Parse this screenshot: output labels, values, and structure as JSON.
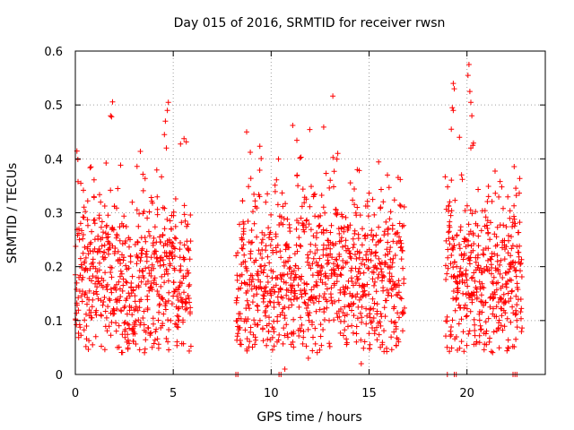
{
  "chart_data": {
    "type": "scatter",
    "title": "Day 015 of 2016, SRMTID for receiver rwsn",
    "xlabel": "GPS time / hours",
    "ylabel": "SRMTID / TECUs",
    "xlim": [
      0,
      24
    ],
    "ylim": [
      0,
      0.6
    ],
    "xticks": [
      0,
      5,
      10,
      15,
      20
    ],
    "xtick_labels": [
      "0",
      "5",
      "10",
      "15",
      "20"
    ],
    "yticks": [
      0,
      0.1,
      0.2,
      0.3,
      0.4,
      0.5,
      0.6
    ],
    "ytick_labels": [
      "0",
      "0.1",
      "0.2",
      "0.3",
      "0.4",
      "0.5",
      "0.6"
    ],
    "grid": true,
    "marker": "+",
    "color": "#ff0000",
    "segments": [
      {
        "start": 0.0,
        "end": 5.9,
        "n": 620,
        "seed": 11
      },
      {
        "start": 8.2,
        "end": 16.8,
        "n": 900,
        "seed": 23
      },
      {
        "start": 18.9,
        "end": 22.8,
        "n": 430,
        "seed": 37
      }
    ],
    "highlights": [
      {
        "x": 1.8,
        "y": 0.48
      },
      {
        "x": 1.85,
        "y": 0.478
      },
      {
        "x": 4.75,
        "y": 0.505
      },
      {
        "x": 4.7,
        "y": 0.49
      },
      {
        "x": 4.6,
        "y": 0.47
      },
      {
        "x": 4.55,
        "y": 0.445
      },
      {
        "x": 4.65,
        "y": 0.42
      },
      {
        "x": 8.75,
        "y": 0.45
      },
      {
        "x": 11.1,
        "y": 0.462
      },
      {
        "x": 13.4,
        "y": 0.41
      },
      {
        "x": 14.4,
        "y": 0.38
      },
      {
        "x": 19.3,
        "y": 0.54
      },
      {
        "x": 19.35,
        "y": 0.53
      },
      {
        "x": 19.3,
        "y": 0.49
      },
      {
        "x": 19.25,
        "y": 0.495
      },
      {
        "x": 19.2,
        "y": 0.455
      },
      {
        "x": 20.1,
        "y": 0.575
      },
      {
        "x": 20.05,
        "y": 0.555
      },
      {
        "x": 20.15,
        "y": 0.525
      },
      {
        "x": 20.2,
        "y": 0.505
      },
      {
        "x": 20.25,
        "y": 0.48
      },
      {
        "x": 20.2,
        "y": 0.42
      },
      {
        "x": 20.3,
        "y": 0.425
      },
      {
        "x": 22.4,
        "y": 0.313
      },
      {
        "x": 10.5,
        "y": 0.0
      },
      {
        "x": 10.7,
        "y": 0.01
      },
      {
        "x": 11.9,
        "y": 0.03
      },
      {
        "x": 14.6,
        "y": 0.02
      }
    ],
    "zero_markers": [
      8.2,
      8.3,
      10.4,
      19.0,
      19.35,
      19.45,
      22.35,
      22.45,
      22.55
    ]
  }
}
